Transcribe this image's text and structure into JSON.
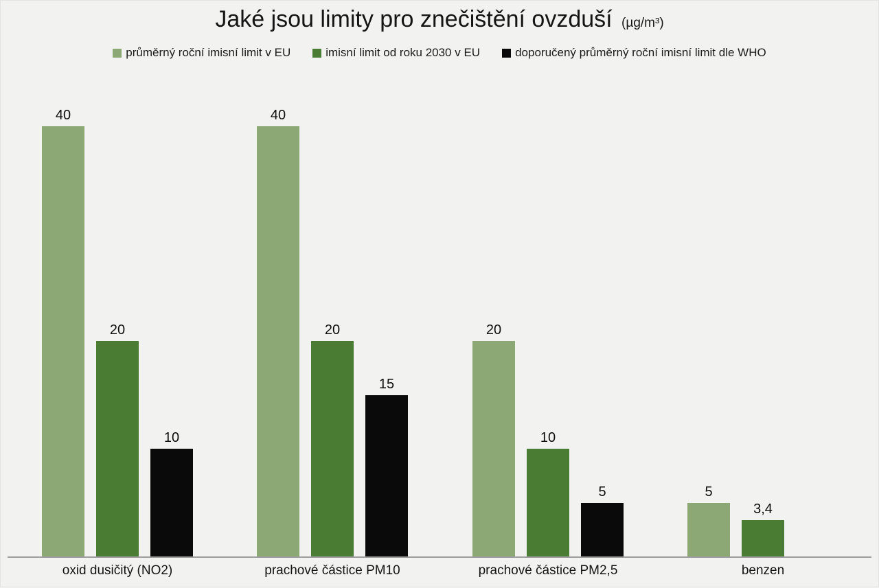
{
  "title": {
    "main": "Jaké jsou limity pro znečištění ovzduší",
    "unit": "(µg/m³)"
  },
  "legend": [
    {
      "label": "průměrný roční imisní limit v EU",
      "color": "#8CA875"
    },
    {
      "label": "imisní limit od roku 2030 v EU",
      "color": "#4A7C33"
    },
    {
      "label": "doporučený průměrný roční imisní limit dle WHO",
      "color": "#0A0A0A"
    }
  ],
  "chart_data": {
    "type": "bar",
    "title": "Jaké jsou limity pro znečištění ovzduší (µg/m³)",
    "unit": "µg/m³",
    "categories": [
      "oxid dusičitý (NO2)",
      "prachové částice PM10",
      "prachové částice PM2,5",
      "benzen"
    ],
    "series": [
      {
        "name": "průměrný roční imisní limit v EU",
        "color": "#8CA875",
        "values": [
          40,
          40,
          20,
          5
        ],
        "labels": [
          "40",
          "40",
          "20",
          "5"
        ]
      },
      {
        "name": "imisní limit od roku 2030 v EU",
        "color": "#4A7C33",
        "values": [
          20,
          20,
          10,
          3.4
        ],
        "labels": [
          "20",
          "20",
          "10",
          "3,4"
        ]
      },
      {
        "name": "doporučený průměrný roční imisní limit dle WHO",
        "color": "#0A0A0A",
        "values": [
          10,
          15,
          5,
          null
        ],
        "labels": [
          "10",
          "15",
          "5",
          ""
        ]
      }
    ],
    "ylim": [
      0,
      40
    ],
    "grid": false,
    "legend_position": "top",
    "value_labels": true
  }
}
